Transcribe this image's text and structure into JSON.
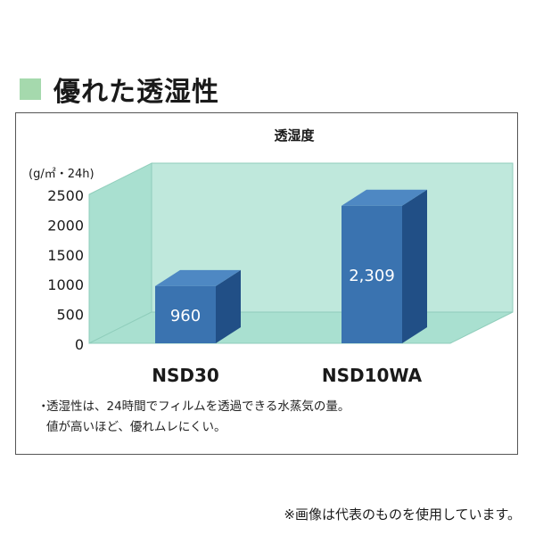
{
  "heading": {
    "title": "優れた透湿性",
    "accent_color": "#a5d9ad"
  },
  "chart_data": {
    "type": "bar",
    "title": "透湿度",
    "ylabel": "(g/㎡・24h)",
    "categories": [
      "NSD30",
      "NSD10WA"
    ],
    "values": [
      960,
      2309
    ],
    "data_labels": [
      "960",
      "2,309"
    ],
    "yticks": [
      "0",
      "500",
      "1000",
      "1500",
      "2000",
      "2500"
    ],
    "ylim": [
      0,
      2500
    ],
    "grid": false,
    "bar_color": "#3a73b0",
    "floor_color": "#bfe8dc"
  },
  "note": {
    "bullet": "・",
    "lines": [
      "透湿性は、24時間でフィルムを透過できる水蒸気の量。",
      "値が高いほど、優れムレにくい。"
    ]
  },
  "footer": "※画像は代表のものを使用しています。"
}
